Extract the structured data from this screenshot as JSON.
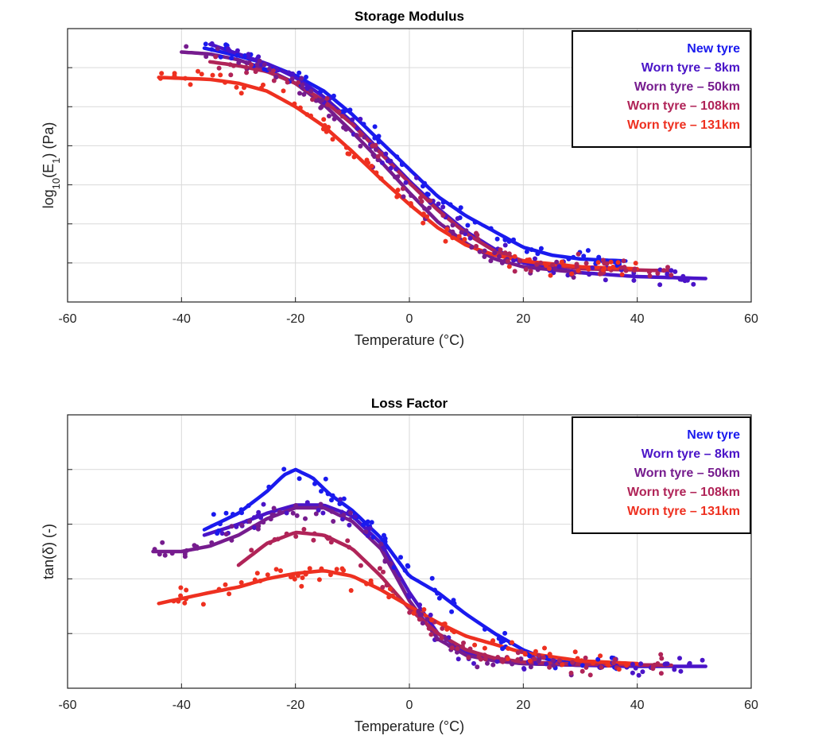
{
  "chart_data": [
    {
      "type": "scatter",
      "title": "Storage Modulus",
      "xlabel": "Temperature (°C)",
      "ylabel_parts": [
        "log",
        "10",
        "(E",
        "1",
        ") (Pa)"
      ],
      "xlim": [
        -60,
        60
      ],
      "ylim": [
        0,
        7
      ],
      "xticks": [
        -60,
        -40,
        -20,
        0,
        20,
        40,
        60
      ],
      "xtick_labels": [
        "-60",
        "-40",
        "-20",
        "0",
        "20",
        "40",
        "60"
      ],
      "yticks": [
        1,
        2,
        3,
        4,
        5,
        6
      ],
      "grid": true,
      "legend_position": "top-right",
      "series": [
        {
          "name": "New tyre",
          "color": "#1a1aee",
          "x": [
            -36,
            -30,
            -25,
            -20,
            -15,
            -10,
            -5,
            0,
            5,
            10,
            15,
            20,
            25,
            30,
            38
          ],
          "y": [
            6.5,
            6.3,
            6.1,
            5.8,
            5.4,
            4.8,
            4.1,
            3.4,
            2.7,
            2.2,
            1.8,
            1.4,
            1.2,
            1.1,
            1.05
          ]
        },
        {
          "name": "Worn tyre – 8km",
          "color": "#4a14c8",
          "x": [
            -35,
            -30,
            -25,
            -20,
            -15,
            -10,
            -5,
            0,
            5,
            10,
            15,
            20,
            30,
            40,
            52
          ],
          "y": [
            6.6,
            6.35,
            6.1,
            5.75,
            5.25,
            4.6,
            3.85,
            3.1,
            2.4,
            1.8,
            1.35,
            1.0,
            0.75,
            0.65,
            0.6
          ]
        },
        {
          "name": "Worn tyre – 50km",
          "color": "#761c8e",
          "x": [
            -40,
            -35,
            -30,
            -25,
            -20,
            -15,
            -10,
            -5,
            0,
            5,
            10,
            15,
            20,
            30
          ],
          "y": [
            6.4,
            6.35,
            6.2,
            5.95,
            5.6,
            5.05,
            4.35,
            3.6,
            2.8,
            2.05,
            1.5,
            1.1,
            0.9,
            0.75
          ]
        },
        {
          "name": "Worn tyre – 108km",
          "color": "#b02458",
          "x": [
            -35,
            -30,
            -25,
            -20,
            -15,
            -10,
            -5,
            0,
            5,
            10,
            15,
            20,
            30,
            46
          ],
          "y": [
            6.15,
            6.05,
            5.9,
            5.6,
            5.15,
            4.55,
            3.8,
            3.05,
            2.35,
            1.75,
            1.3,
            1.05,
            0.85,
            0.8
          ]
        },
        {
          "name": "Worn tyre – 131km",
          "color": "#ee3020",
          "x": [
            -44,
            -35,
            -30,
            -25,
            -20,
            -15,
            -10,
            -5,
            0,
            5,
            10,
            15,
            20,
            30,
            40
          ],
          "y": [
            5.75,
            5.7,
            5.6,
            5.4,
            5.0,
            4.5,
            3.85,
            3.15,
            2.5,
            1.9,
            1.45,
            1.2,
            1.05,
            0.9,
            0.85
          ]
        }
      ]
    },
    {
      "type": "scatter",
      "title": "Loss Factor",
      "xlabel": "Temperature (°C)",
      "ylabel_parts": [
        "tan(δ) (-)"
      ],
      "xlim": [
        -60,
        60
      ],
      "ylim": [
        0,
        5
      ],
      "xticks": [
        -60,
        -40,
        -20,
        0,
        20,
        40,
        60
      ],
      "xtick_labels": [
        "-60",
        "-40",
        "-20",
        "0",
        "20",
        "40",
        "60"
      ],
      "yticks": [
        1,
        2,
        3,
        4
      ],
      "grid": true,
      "legend_position": "top-right",
      "series": [
        {
          "name": "New tyre",
          "color": "#1a1aee",
          "x": [
            -36,
            -30,
            -25,
            -22,
            -20,
            -17,
            -14,
            -10,
            -5,
            0,
            5,
            10,
            15,
            20,
            25,
            30,
            38
          ],
          "y": [
            2.9,
            3.2,
            3.6,
            3.9,
            4.0,
            3.85,
            3.55,
            3.25,
            2.75,
            2.05,
            1.75,
            1.35,
            1.0,
            0.7,
            0.5,
            0.45,
            0.4
          ]
        },
        {
          "name": "Worn tyre – 8km",
          "color": "#4a14c8",
          "x": [
            -36,
            -30,
            -25,
            -20,
            -15,
            -10,
            -5,
            0,
            5,
            10,
            15,
            20,
            30,
            40,
            52
          ],
          "y": [
            2.8,
            3.0,
            3.2,
            3.35,
            3.35,
            3.15,
            2.65,
            1.75,
            1.0,
            0.65,
            0.5,
            0.45,
            0.42,
            0.4,
            0.4
          ]
        },
        {
          "name": "Worn tyre – 50km",
          "color": "#761c8e",
          "x": [
            -45,
            -40,
            -35,
            -30,
            -25,
            -20,
            -15,
            -10,
            -5,
            0,
            5,
            10,
            15,
            20,
            30
          ],
          "y": [
            2.5,
            2.5,
            2.6,
            2.8,
            3.1,
            3.3,
            3.3,
            3.05,
            2.55,
            1.6,
            0.9,
            0.6,
            0.5,
            0.45,
            0.42
          ]
        },
        {
          "name": "Worn tyre – 108km",
          "color": "#b02458",
          "x": [
            -30,
            -25,
            -20,
            -15,
            -10,
            -5,
            0,
            5,
            10,
            15,
            20,
            30,
            46
          ],
          "y": [
            2.25,
            2.65,
            2.85,
            2.8,
            2.55,
            2.05,
            1.45,
            1.0,
            0.7,
            0.55,
            0.48,
            0.44,
            0.42
          ]
        },
        {
          "name": "Worn tyre – 131km",
          "color": "#ee3020",
          "x": [
            -44,
            -35,
            -30,
            -25,
            -20,
            -15,
            -10,
            -5,
            0,
            5,
            10,
            15,
            20,
            30,
            40
          ],
          "y": [
            1.55,
            1.75,
            1.85,
            2.0,
            2.1,
            2.15,
            2.05,
            1.8,
            1.5,
            1.2,
            0.95,
            0.8,
            0.65,
            0.5,
            0.45
          ]
        }
      ]
    }
  ]
}
